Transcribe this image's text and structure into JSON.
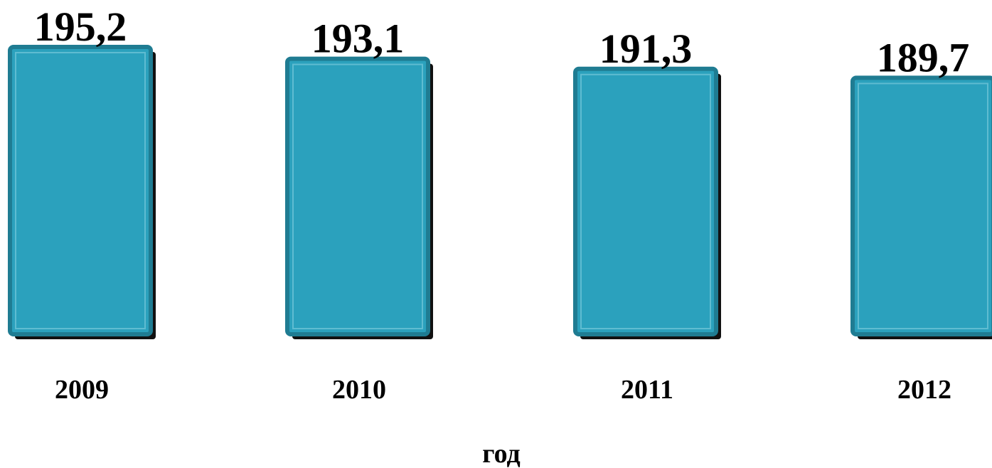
{
  "chart_data": {
    "type": "bar",
    "categories": [
      "2009",
      "2010",
      "2011",
      "2012"
    ],
    "values": [
      195.2,
      193.1,
      191.3,
      189.7
    ],
    "value_labels": [
      "195,2",
      "193,1",
      "191,3",
      "189,7"
    ],
    "title": "",
    "xlabel": "год",
    "ylabel": "",
    "grid": false,
    "legend": "none",
    "colors": {
      "bar_fill": "#2ba1bd",
      "bar_border": "#1f7c92",
      "bar_inner_line": "#5fbcd1",
      "bar_shadow": "#111111",
      "text": "#000000"
    }
  }
}
